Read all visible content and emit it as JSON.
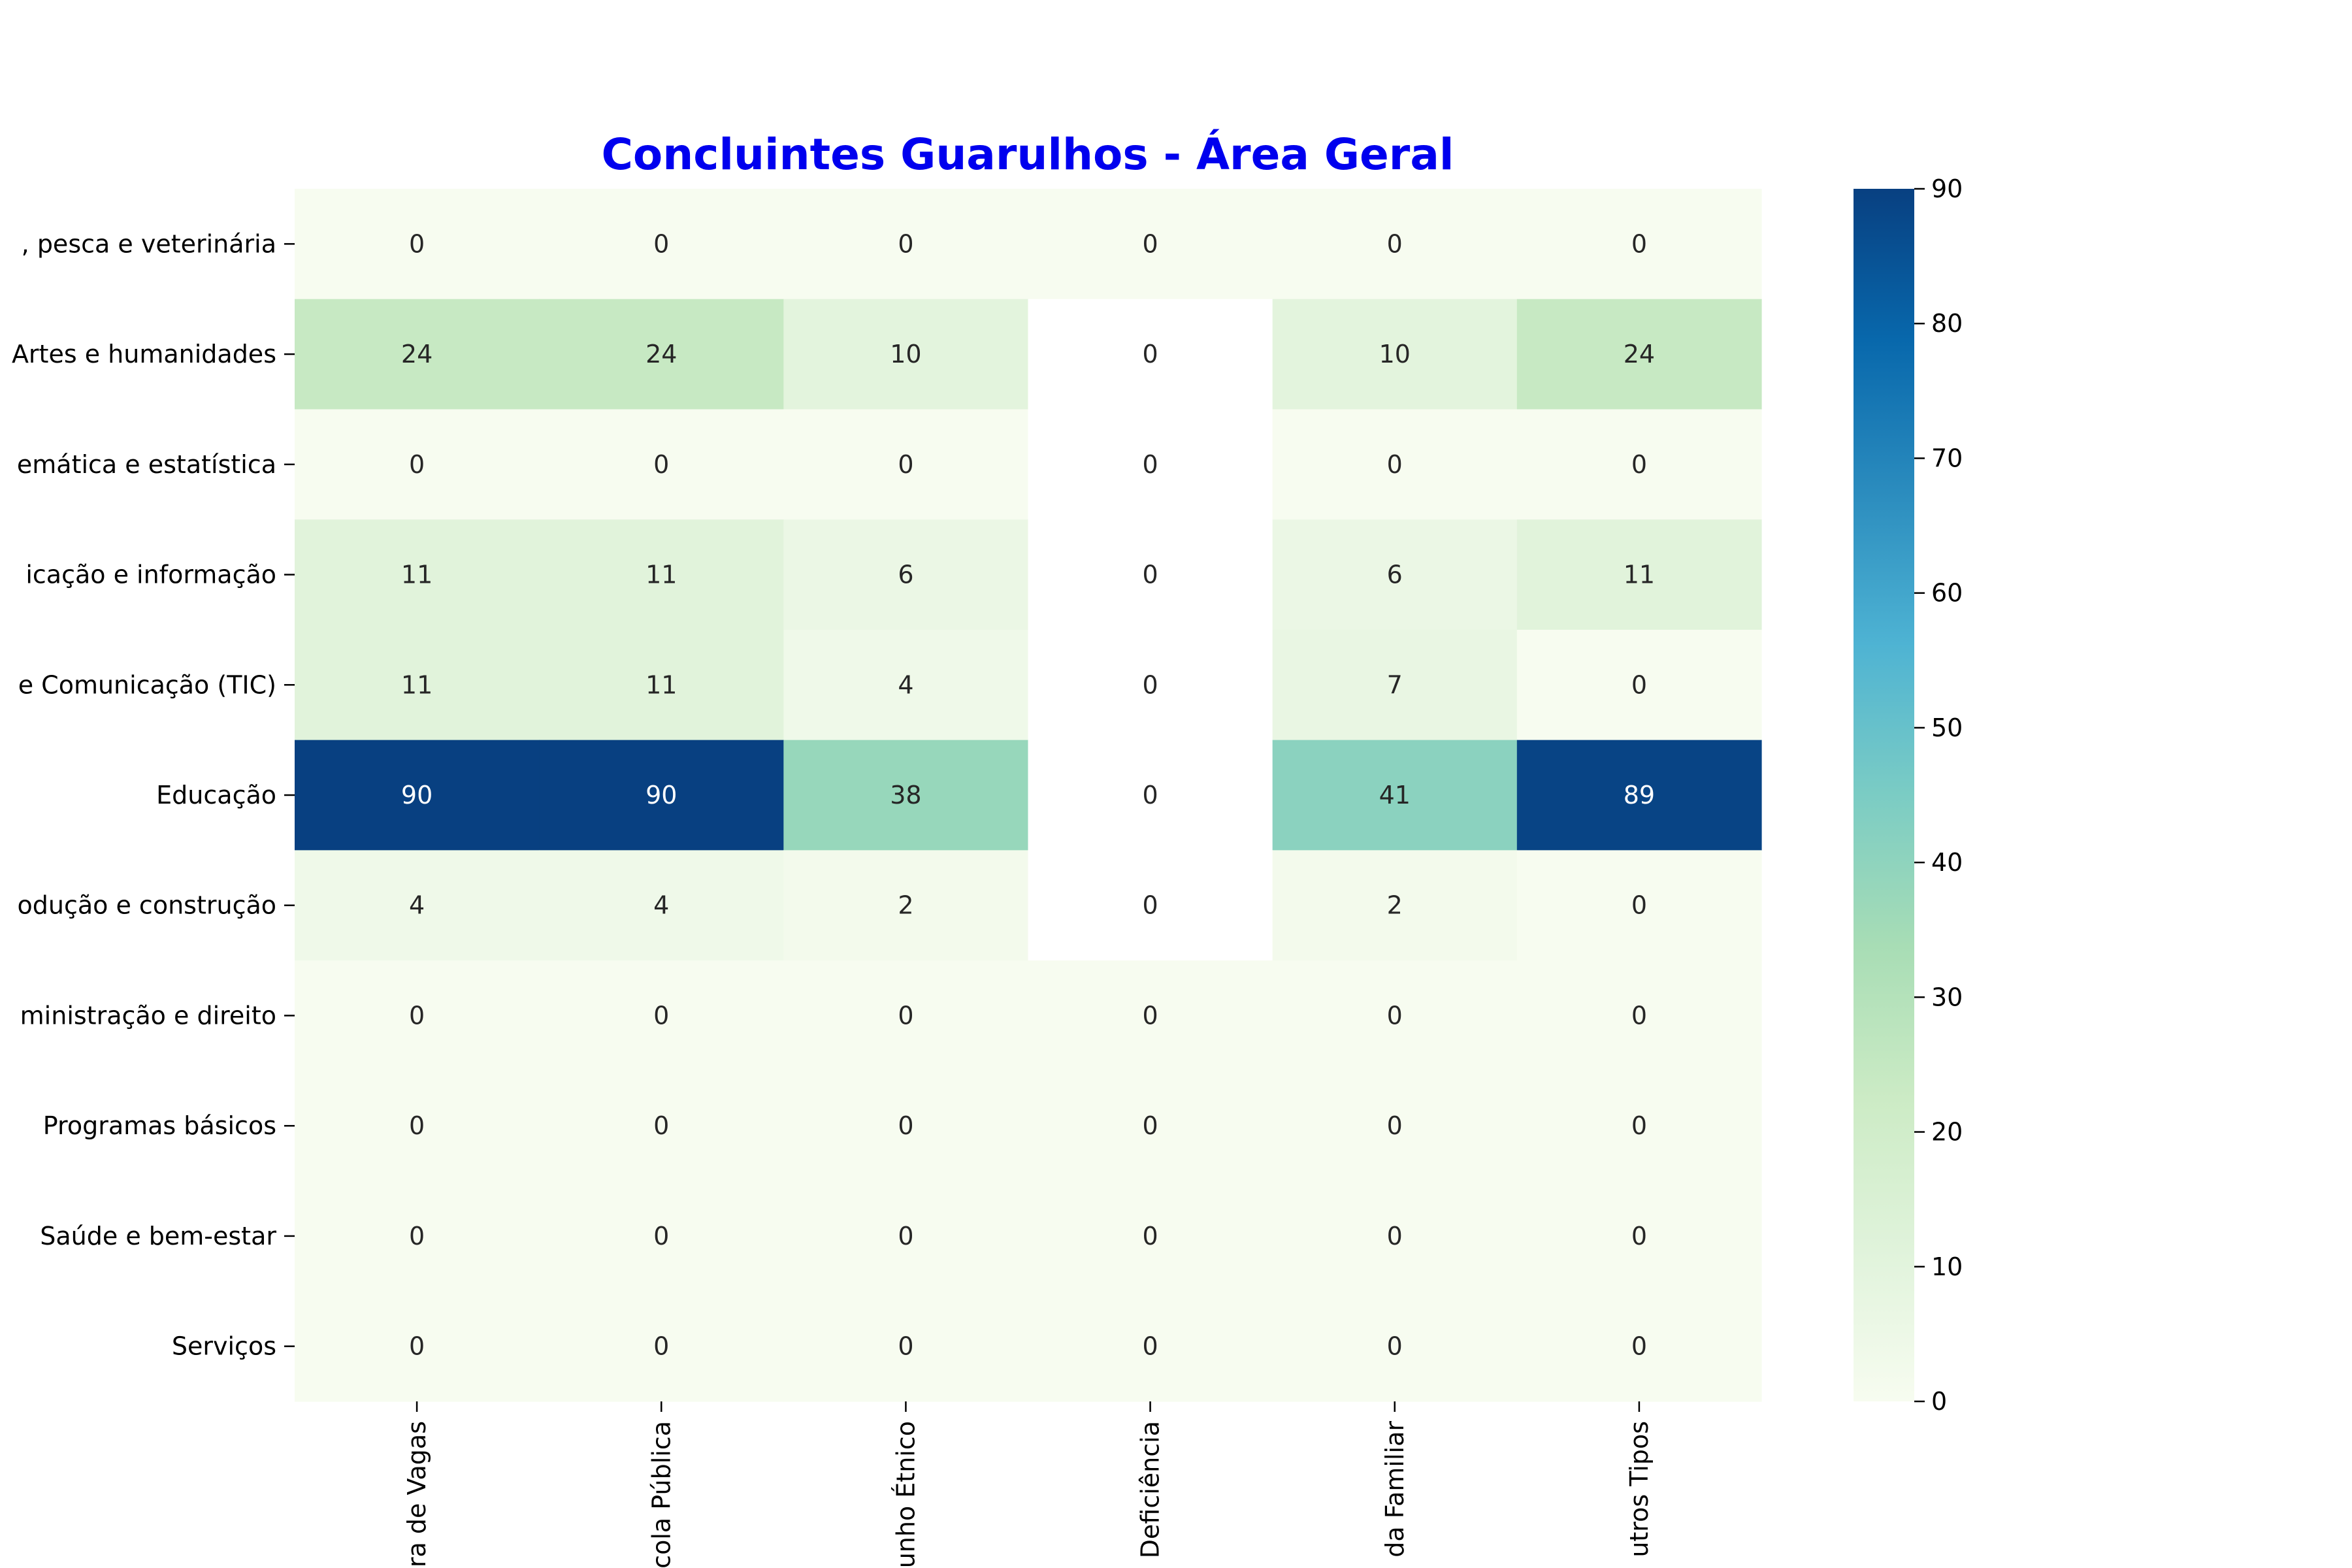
{
  "chart_data": {
    "type": "heatmap",
    "title": "Concluintes Guarulhos - Área Geral",
    "title_color": "#0000ee",
    "rows": [
      ", pesca e veterinária",
      "Artes e humanidades",
      "emática e estatística",
      "icação e informação",
      "e Comunicação (TIC)",
      "Educação",
      "odução e construção",
      "ministração e direito",
      "Programas básicos",
      "Saúde e bem-estar",
      "Serviços"
    ],
    "columns": [
      "ra de Vagas",
      "cola Pública",
      "unho Étnico",
      "Deficiência",
      "da Familiar",
      "utros Tipos"
    ],
    "values": [
      [
        0,
        0,
        0,
        0,
        0,
        0
      ],
      [
        24,
        24,
        10,
        0,
        10,
        24
      ],
      [
        0,
        0,
        0,
        0,
        0,
        0
      ],
      [
        11,
        11,
        6,
        0,
        6,
        11
      ],
      [
        11,
        11,
        4,
        0,
        7,
        0
      ],
      [
        90,
        90,
        38,
        0,
        41,
        89
      ],
      [
        4,
        4,
        2,
        0,
        2,
        0
      ],
      [
        0,
        0,
        0,
        0,
        0,
        0
      ],
      [
        0,
        0,
        0,
        0,
        0,
        0
      ],
      [
        0,
        0,
        0,
        0,
        0,
        0
      ],
      [
        0,
        0,
        0,
        0,
        0,
        0
      ]
    ],
    "empty_cells": [
      [
        1,
        3
      ],
      [
        2,
        3
      ],
      [
        3,
        3
      ],
      [
        4,
        3
      ],
      [
        5,
        3
      ],
      [
        6,
        3
      ]
    ],
    "colorbar": {
      "colormap": "GnBu",
      "range": [
        0,
        90
      ],
      "ticks": [
        0,
        10,
        20,
        30,
        40,
        50,
        60,
        70,
        80,
        90
      ]
    }
  }
}
